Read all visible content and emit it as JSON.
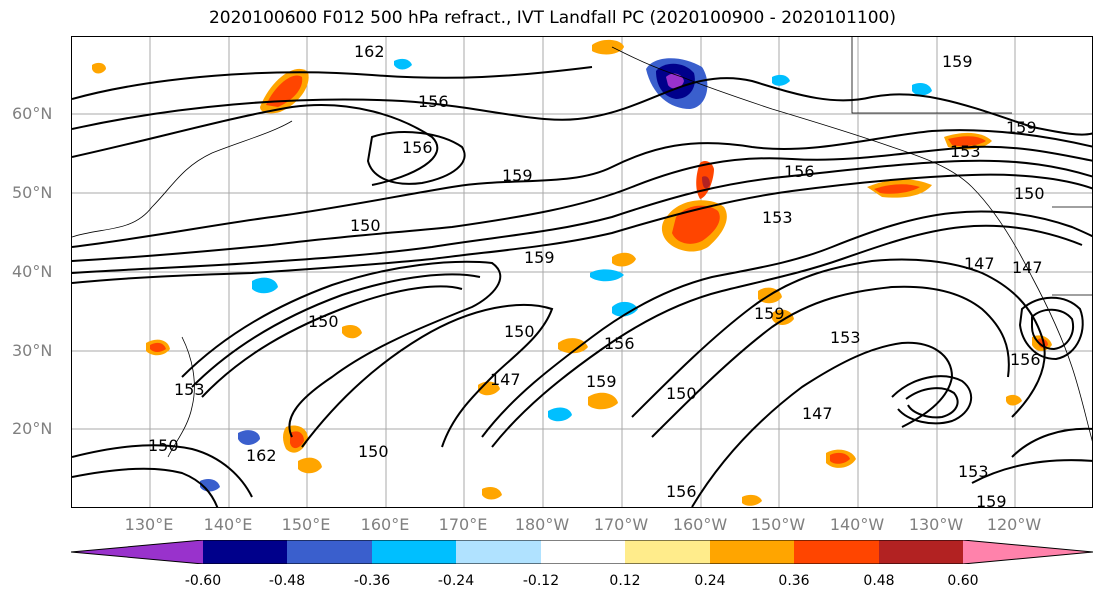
{
  "title": "2020100600 F012 500 hPa refract., IVT Landfall PC (2020100900 - 2020101100)",
  "latitude_labels": [
    "60°N",
    "50°N",
    "40°N",
    "30°N",
    "20°N"
  ],
  "longitude_labels": [
    "130°E",
    "140°E",
    "150°E",
    "160°E",
    "170°E",
    "180°W",
    "170°W",
    "160°W",
    "150°W",
    "140°W",
    "130°W",
    "120°W"
  ],
  "colorbar": {
    "ticks": [
      "-0.60",
      "-0.48",
      "-0.36",
      "-0.24",
      "-0.12",
      "0.12",
      "0.24",
      "0.36",
      "0.48",
      "0.60"
    ],
    "colors": [
      "#9932cc",
      "#00008b",
      "#3a5fcd",
      "#00bfff",
      "#b0e2ff",
      "#ffffff",
      "#ffec8b",
      "#ffa500",
      "#ff4500",
      "#b22222",
      "#ff82ab"
    ]
  },
  "contour_labels": [
    "162",
    "159",
    "156",
    "153",
    "150",
    "147",
    "159",
    "156",
    "153",
    "159",
    "150",
    "147",
    "156",
    "159",
    "150",
    "153",
    "150",
    "150",
    "159",
    "153",
    "156",
    "147",
    "159",
    "162",
    "156",
    "150",
    "159",
    "153",
    "150",
    "147",
    "156"
  ],
  "colors": {
    "grid": "#a9a9a9",
    "contour": "#000000",
    "coast": "#000000",
    "axis_label": "#808080"
  }
}
